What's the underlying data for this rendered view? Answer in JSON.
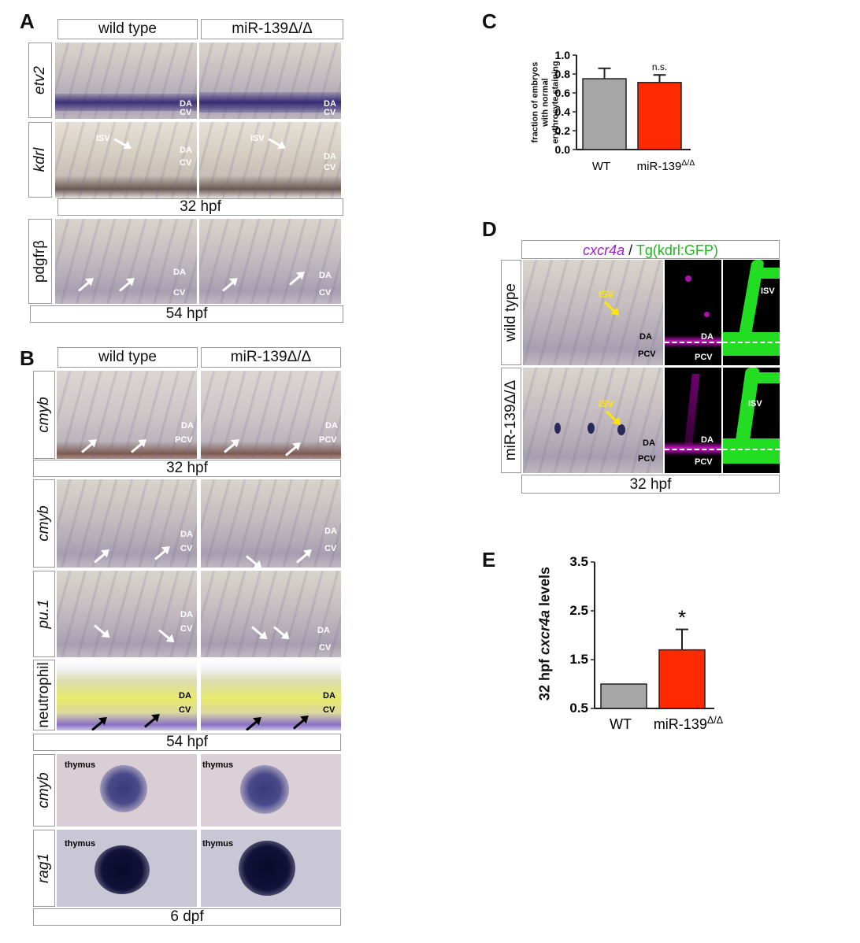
{
  "panels": {
    "A": {
      "label": "A",
      "col_headers": [
        "wild type",
        "miR-139Δ/Δ"
      ],
      "rows": [
        "etv2",
        "kdrl",
        "pdgfrβ"
      ],
      "labels": {
        "da": "DA",
        "cv": "CV",
        "isv": "ISV"
      },
      "stage_1": "32 hpf",
      "stage_2": "54 hpf"
    },
    "B": {
      "label": "B",
      "col_headers": [
        "wild type",
        "miR-139Δ/Δ"
      ],
      "rows": [
        "cmyb",
        "cmyb",
        "pu.1",
        "neutrophil",
        "cmyb",
        "rag1"
      ],
      "labels": {
        "da": "DA",
        "cv": "CV",
        "pcv": "PCV",
        "thymus": "thymus"
      },
      "stage_1": "32 hpf",
      "stage_2": "54 hpf",
      "stage_3": "6 dpf"
    },
    "C": {
      "label": "C",
      "ylabel_lines": [
        "fraction of embryos",
        "with normal",
        "erythrocyte staining"
      ],
      "significance": "n.s."
    },
    "D": {
      "label": "D",
      "header_part1": "cxcr4a",
      "header_sep": " / ",
      "header_part2": "Tg(kdrl:GFP)",
      "rows": [
        "wild type",
        "miR-139Δ/Δ"
      ],
      "labels": {
        "isv": "ISV",
        "da": "DA",
        "pcv": "PCV"
      },
      "stage": "32 hpf"
    },
    "E": {
      "label": "E",
      "ylabel_prefix": "32 hpf ",
      "ylabel_italic": "cxcr4a",
      "ylabel_suffix": " levels",
      "significance": "*"
    }
  },
  "chart_data": [
    {
      "type": "bar",
      "panel": "C",
      "categories": [
        "WT",
        "miR-139Δ/Δ"
      ],
      "values": [
        0.75,
        0.71
      ],
      "errors": [
        0.11,
        0.08
      ],
      "colors": [
        "#a6a6a6",
        "#ff2a00"
      ],
      "ylabel": "fraction of embryos with normal erythrocyte staining",
      "ylim": [
        0.0,
        1.0
      ],
      "yticks": [
        "0.0",
        "0.2",
        "0.4",
        "0.6",
        "0.8",
        "1.0"
      ],
      "annotation": "n.s."
    },
    {
      "type": "bar",
      "panel": "E",
      "categories": [
        "WT",
        "miR-139Δ/Δ"
      ],
      "values": [
        1.0,
        1.7
      ],
      "errors": [
        0.0,
        0.42
      ],
      "colors": [
        "#a6a6a6",
        "#ff2a00"
      ],
      "ylabel": "32 hpf cxcr4a levels",
      "ylim": [
        0.5,
        3.5
      ],
      "yticks": [
        "0.5",
        "1.5",
        "2.5",
        "3.5"
      ],
      "annotation": "*"
    }
  ]
}
